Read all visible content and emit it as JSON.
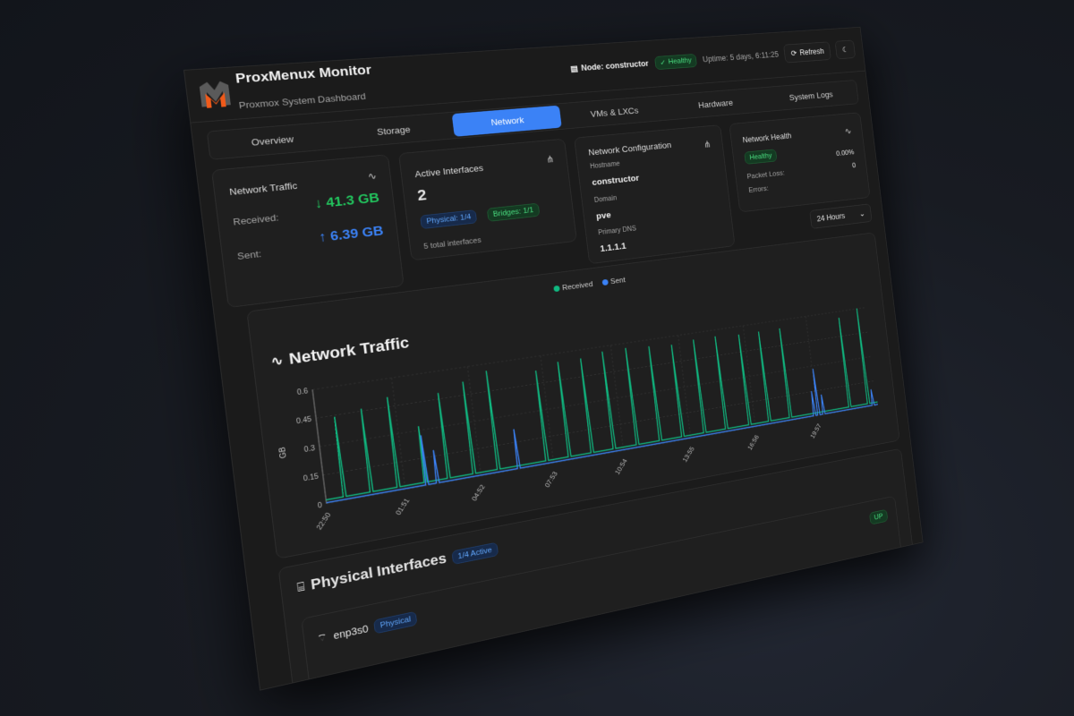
{
  "header": {
    "app_title": "ProxMenux Monitor",
    "app_subtitle": "Proxmox System Dashboard",
    "node_label": "Node: constructor",
    "status": "Healthy",
    "uptime": "Uptime: 5 days, 6:11:25",
    "refresh_label": "Refresh",
    "icons": {
      "node": "server-icon",
      "status": "check-circle-icon",
      "refresh": "refresh-icon",
      "theme": "moon-icon"
    }
  },
  "tabs": [
    {
      "label": "Overview",
      "active": false
    },
    {
      "label": "Storage",
      "active": false
    },
    {
      "label": "Network",
      "active": true
    },
    {
      "label": "VMs & LXCs",
      "active": false
    },
    {
      "label": "Hardware",
      "active": false
    },
    {
      "label": "System Logs",
      "active": false
    }
  ],
  "cards": {
    "traffic": {
      "title": "Network Traffic",
      "received_label": "Received:",
      "received_value": "↓ 41.3 GB",
      "sent_label": "Sent:",
      "sent_value": "↑ 6.39 GB"
    },
    "interfaces": {
      "title": "Active Interfaces",
      "count": "2",
      "physical_badge": "Physical: 1/4",
      "bridges_badge": "Bridges: 1/1",
      "total": "5 total interfaces"
    },
    "config": {
      "title": "Network Configuration",
      "hostname_label": "Hostname",
      "hostname": "constructor",
      "domain_label": "Domain",
      "domain": "pve",
      "dns_label": "Primary DNS",
      "dns": "1.1.1.1"
    },
    "health": {
      "title": "Network Health",
      "status": "Healthy",
      "packet_loss_label": "Packet Loss:",
      "packet_loss": "0.00%",
      "errors_label": "Errors:",
      "errors": "0"
    }
  },
  "time_range": {
    "selected": "24 Hours"
  },
  "colors": {
    "accent": "#3b82f6",
    "received": "#10b981",
    "sent": "#3b82f6",
    "healthy": "#22c55e"
  },
  "chart_data": {
    "type": "line",
    "title": "Network Traffic",
    "ylabel": "GB",
    "ylim": [
      0,
      0.6
    ],
    "yticks": [
      "0",
      "0.15",
      "0.3",
      "0.45",
      "0.6"
    ],
    "xticks": [
      "22:50",
      "01:51",
      "04:52",
      "07:53",
      "10:54",
      "13:55",
      "16:56",
      "19:57"
    ],
    "x_range": [
      "22:50",
      "22:45"
    ],
    "grid": true,
    "legend": "top-center",
    "series": [
      {
        "name": "Received",
        "color": "#10b981",
        "baseline": 0.02,
        "peaks": [
          [
            "23:31",
            0.44
          ],
          [
            "00:32",
            0.46
          ],
          [
            "01:34",
            0.5
          ],
          [
            "02:37",
            0.32
          ],
          [
            "03:32",
            0.48
          ],
          [
            "04:33",
            0.52
          ],
          [
            "05:32",
            0.56
          ],
          [
            "07:32",
            0.52
          ],
          [
            "08:29",
            0.55
          ],
          [
            "09:27",
            0.55
          ],
          [
            "10:24",
            0.57
          ],
          [
            "11:25",
            0.57
          ],
          [
            "12:26",
            0.56
          ],
          [
            "13:26",
            0.55
          ],
          [
            "14:26",
            0.56
          ],
          [
            "15:26",
            0.56
          ],
          [
            "16:31",
            0.55
          ],
          [
            "17:27",
            0.55
          ],
          [
            "18:27",
            0.55
          ],
          [
            "21:21",
            0.56
          ],
          [
            "22:17",
            0.6
          ]
        ]
      },
      {
        "name": "Sent",
        "color": "#3b82f6",
        "baseline": 0.005,
        "peaks": [
          [
            "02:40",
            0.27
          ],
          [
            "03:05",
            0.18
          ],
          [
            "06:21",
            0.22
          ],
          [
            "19:36",
            0.15
          ],
          [
            "19:48",
            0.28
          ],
          [
            "20:03",
            0.12
          ],
          [
            "22:30",
            0.1
          ]
        ]
      }
    ]
  },
  "physical": {
    "title": "Physical Interfaces",
    "active_badge": "1/4 Active",
    "interfaces": [
      {
        "name": "enp3s0",
        "type": "Physical",
        "status": "UP"
      }
    ]
  }
}
